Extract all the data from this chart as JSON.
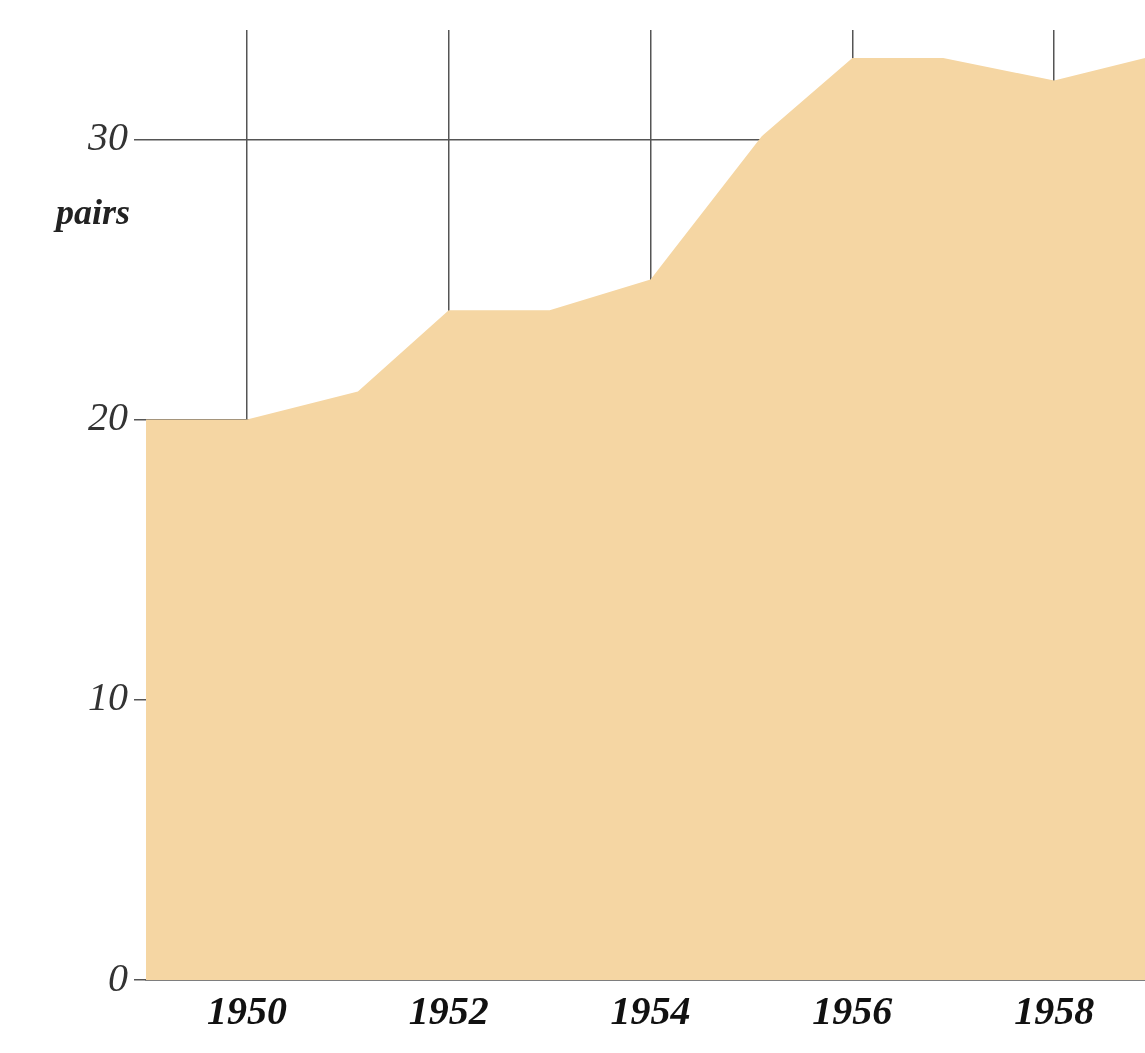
{
  "chart_data": {
    "type": "area",
    "ylabel": "pairs",
    "x": [
      1949,
      1950,
      1951.1,
      1952,
      1953,
      1954,
      1955.1,
      1956,
      1956.9,
      1958,
      1958.9
    ],
    "values": [
      20,
      20,
      21,
      23.9,
      23.9,
      25,
      30.1,
      32.9,
      32.9,
      32.1,
      32.9
    ],
    "color": "#f5d6a3",
    "xlim": [
      1949,
      1958.9
    ],
    "ylim": [
      0,
      33.9
    ],
    "xticks": [
      1950,
      1952,
      1954,
      1956,
      1958
    ],
    "yticks": [
      0,
      10,
      20,
      30
    ],
    "grid": true
  }
}
